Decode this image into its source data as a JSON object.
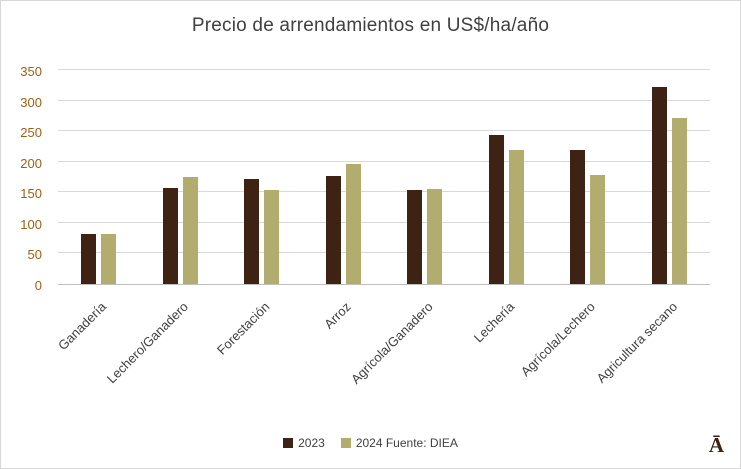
{
  "title": "Precio de arrendamientos en US$/ha/año",
  "chart_data": {
    "type": "bar",
    "categories": [
      "Ganadería",
      "Lechero/Ganadero",
      "Forestación",
      "Arroz",
      "Agrícola/Ganadero",
      "Lechería",
      "Agrícola/Lechero",
      "Agricultura secano"
    ],
    "series": [
      {
        "name": "2023",
        "color": "#3E2314",
        "values": [
          82,
          157,
          171,
          176,
          154,
          243,
          219,
          323
        ]
      },
      {
        "name": "2024",
        "color": "#B2AC6E",
        "values": [
          82,
          175,
          153,
          197,
          156,
          219,
          178,
          271
        ]
      }
    ],
    "ylim": [
      0,
      350
    ],
    "ytick_step": 50,
    "grid": true,
    "legend_position": "bottom",
    "xlabel": "",
    "ylabel": ""
  },
  "legend": {
    "items": [
      "2023",
      "2024 Fuente: DIEA"
    ]
  },
  "colors": {
    "bar_2023": "#3E2314",
    "bar_2024": "#B2AC6E",
    "y_tick_label": "#9C6114",
    "gridline": "#d9d9d9",
    "title_text": "#404040"
  },
  "logo": "Ā"
}
